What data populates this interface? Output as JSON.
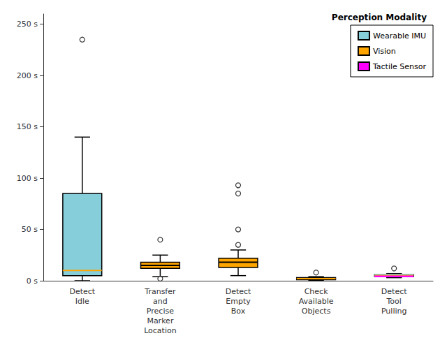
{
  "chart_data": {
    "type": "box",
    "categories": [
      "Detect\nIdle",
      "Transfer\nand\nPrecise\nMarker\nLocation",
      "Detect\nEmpty\nBox",
      "Check\nAvailable\nObjects",
      "Detect\nTool\nPulling"
    ],
    "colors": [
      "#87CEDB",
      "#FFA500",
      "#FFA500",
      "#FFA500",
      "#FFA500"
    ],
    "boxes": [
      {
        "q1": 5,
        "med": 10,
        "q3": 85,
        "whislo": 0,
        "whishi": 140,
        "fliers": [
          235
        ],
        "median_color": "#FFA500"
      },
      {
        "q1": 12,
        "med": 15,
        "q3": 18,
        "whislo": 4,
        "whishi": 25,
        "fliers": [
          40,
          2
        ],
        "median_color": "#000000"
      },
      {
        "q1": 13,
        "med": 18,
        "q3": 22,
        "whislo": 5,
        "whishi": 30,
        "fliers": [
          35,
          50,
          85,
          93
        ],
        "median_color": "#000000"
      },
      {
        "q1": 1,
        "med": 2,
        "q3": 3,
        "whislo": 0.5,
        "whishi": 4,
        "fliers": [
          8
        ],
        "median_color": "#FFA500"
      },
      {
        "q1": 4,
        "q3": 6,
        "whislo": 3,
        "whishi": 7,
        "fliers": [
          12
        ],
        "median_lines": [
          {
            "value": 5.8,
            "color": "#87CEDB"
          },
          {
            "value": 5.0,
            "color": "#FFA500"
          },
          {
            "value": 4.2,
            "color": "#FF00FF"
          }
        ]
      }
    ],
    "ylim": [
      0,
      260
    ],
    "yticks": [
      {
        "value": 0,
        "label": "0 s"
      },
      {
        "value": 50,
        "label": "50 s"
      },
      {
        "value": 100,
        "label": "100 s"
      },
      {
        "value": 150,
        "label": "150 s"
      },
      {
        "value": 200,
        "label": "200 s"
      },
      {
        "value": 250,
        "label": "250 s"
      }
    ],
    "grid": false,
    "legend": "upper right",
    "legend_title": "Perception Modality",
    "legend_items": [
      {
        "label": "Wearable IMU",
        "color": "#87CEDB"
      },
      {
        "label": "Vision",
        "color": "#FFA500"
      },
      {
        "label": "Tactile Sensor",
        "color": "#FF00FF"
      }
    ]
  }
}
